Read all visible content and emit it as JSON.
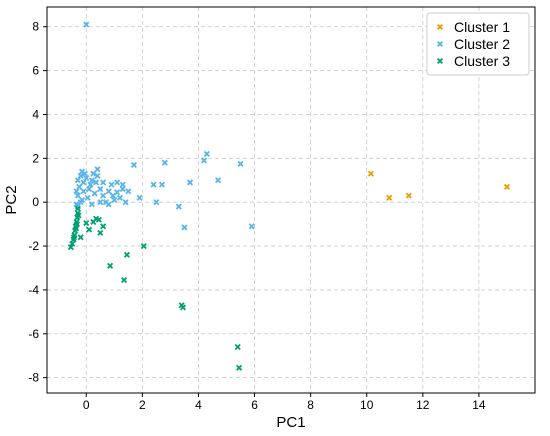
{
  "chart_data": {
    "type": "scatter",
    "title": "",
    "xlabel": "PC1",
    "ylabel": "PC2",
    "xlim": [
      -1.4,
      16
    ],
    "ylim": [
      -8.7,
      8.9
    ],
    "xticks": [
      0,
      2,
      4,
      6,
      8,
      10,
      12,
      14
    ],
    "yticks": [
      -8,
      -6,
      -4,
      -2,
      0,
      2,
      4,
      6,
      8
    ],
    "grid": true,
    "legend_position": "top-right",
    "marker": "x",
    "series": [
      {
        "name": "Cluster 1",
        "color": "#E69F00",
        "points": [
          [
            10.15,
            1.3
          ],
          [
            10.8,
            0.2
          ],
          [
            11.5,
            0.3
          ],
          [
            15.0,
            0.7
          ]
        ]
      },
      {
        "name": "Cluster 2",
        "color": "#56B4E9",
        "points": [
          [
            0.0,
            8.1
          ],
          [
            4.3,
            2.2
          ],
          [
            4.2,
            1.9
          ],
          [
            5.5,
            1.75
          ],
          [
            2.8,
            1.8
          ],
          [
            1.7,
            1.7
          ],
          [
            3.7,
            0.9
          ],
          [
            4.7,
            1.0
          ],
          [
            2.4,
            0.8
          ],
          [
            2.7,
            0.8
          ],
          [
            3.3,
            -0.2
          ],
          [
            3.5,
            -1.15
          ],
          [
            5.9,
            -1.1
          ],
          [
            2.5,
            0.0
          ],
          [
            1.9,
            0.2
          ],
          [
            1.1,
            0.9
          ],
          [
            1.3,
            0.6
          ],
          [
            1.5,
            0.5
          ],
          [
            1.2,
            0.2
          ],
          [
            1.4,
            0.0
          ],
          [
            0.9,
            0.8
          ],
          [
            0.8,
            0.5
          ],
          [
            0.6,
            0.3
          ],
          [
            0.7,
            0.0
          ],
          [
            1.0,
            0.1
          ],
          [
            0.5,
            0.6
          ],
          [
            0.4,
            1.5
          ],
          [
            0.4,
            1.2
          ],
          [
            0.35,
            0.9
          ],
          [
            0.2,
            1.0
          ],
          [
            0.3,
            0.4
          ],
          [
            0.1,
            0.6
          ],
          [
            0.05,
            0.2
          ],
          [
            0.2,
            -0.1
          ],
          [
            0.0,
            1.1
          ],
          [
            -0.1,
            0.9
          ],
          [
            -0.1,
            0.5
          ],
          [
            -0.15,
            0.1
          ],
          [
            -0.2,
            1.2
          ],
          [
            -0.25,
            0.7
          ],
          [
            -0.3,
            0.3
          ],
          [
            -0.2,
            0.0
          ],
          [
            -0.35,
            -0.1
          ],
          [
            -0.3,
            1.0
          ],
          [
            -0.35,
            0.5
          ],
          [
            -0.3,
            -0.2
          ],
          [
            -0.15,
            1.4
          ],
          [
            -0.05,
            1.3
          ],
          [
            0.15,
            0.8
          ],
          [
            0.25,
            1.3
          ],
          [
            0.6,
            0.9
          ],
          [
            0.8,
            -0.1
          ],
          [
            1.1,
            0.45
          ],
          [
            0.95,
            0.3
          ],
          [
            0.5,
            0.0
          ],
          [
            1.3,
            0.8
          ]
        ]
      },
      {
        "name": "Cluster 3",
        "color": "#009E73",
        "points": [
          [
            3.4,
            -4.7
          ],
          [
            3.45,
            -4.8
          ],
          [
            5.4,
            -6.6
          ],
          [
            5.45,
            -7.55
          ],
          [
            1.35,
            -3.55
          ],
          [
            0.85,
            -2.9
          ],
          [
            1.45,
            -2.4
          ],
          [
            2.05,
            -2.0
          ],
          [
            0.5,
            -1.4
          ],
          [
            0.6,
            -1.1
          ],
          [
            0.35,
            -0.75
          ],
          [
            0.45,
            -0.8
          ],
          [
            0.1,
            -1.25
          ],
          [
            -0.2,
            -1.6
          ],
          [
            0.25,
            -0.9
          ],
          [
            0.0,
            -0.95
          ],
          [
            -0.3,
            -0.5
          ],
          [
            -0.32,
            -0.7
          ],
          [
            -0.35,
            -0.9
          ],
          [
            -0.38,
            -1.1
          ],
          [
            -0.4,
            -1.3
          ],
          [
            -0.42,
            -1.5
          ],
          [
            -0.45,
            -1.7
          ],
          [
            -0.5,
            -1.9
          ],
          [
            -0.55,
            -2.05
          ],
          [
            -0.3,
            -0.3
          ],
          [
            -0.28,
            -0.6
          ],
          [
            -0.33,
            -1.0
          ],
          [
            -0.36,
            -1.2
          ],
          [
            -0.44,
            -1.6
          ]
        ]
      }
    ]
  }
}
